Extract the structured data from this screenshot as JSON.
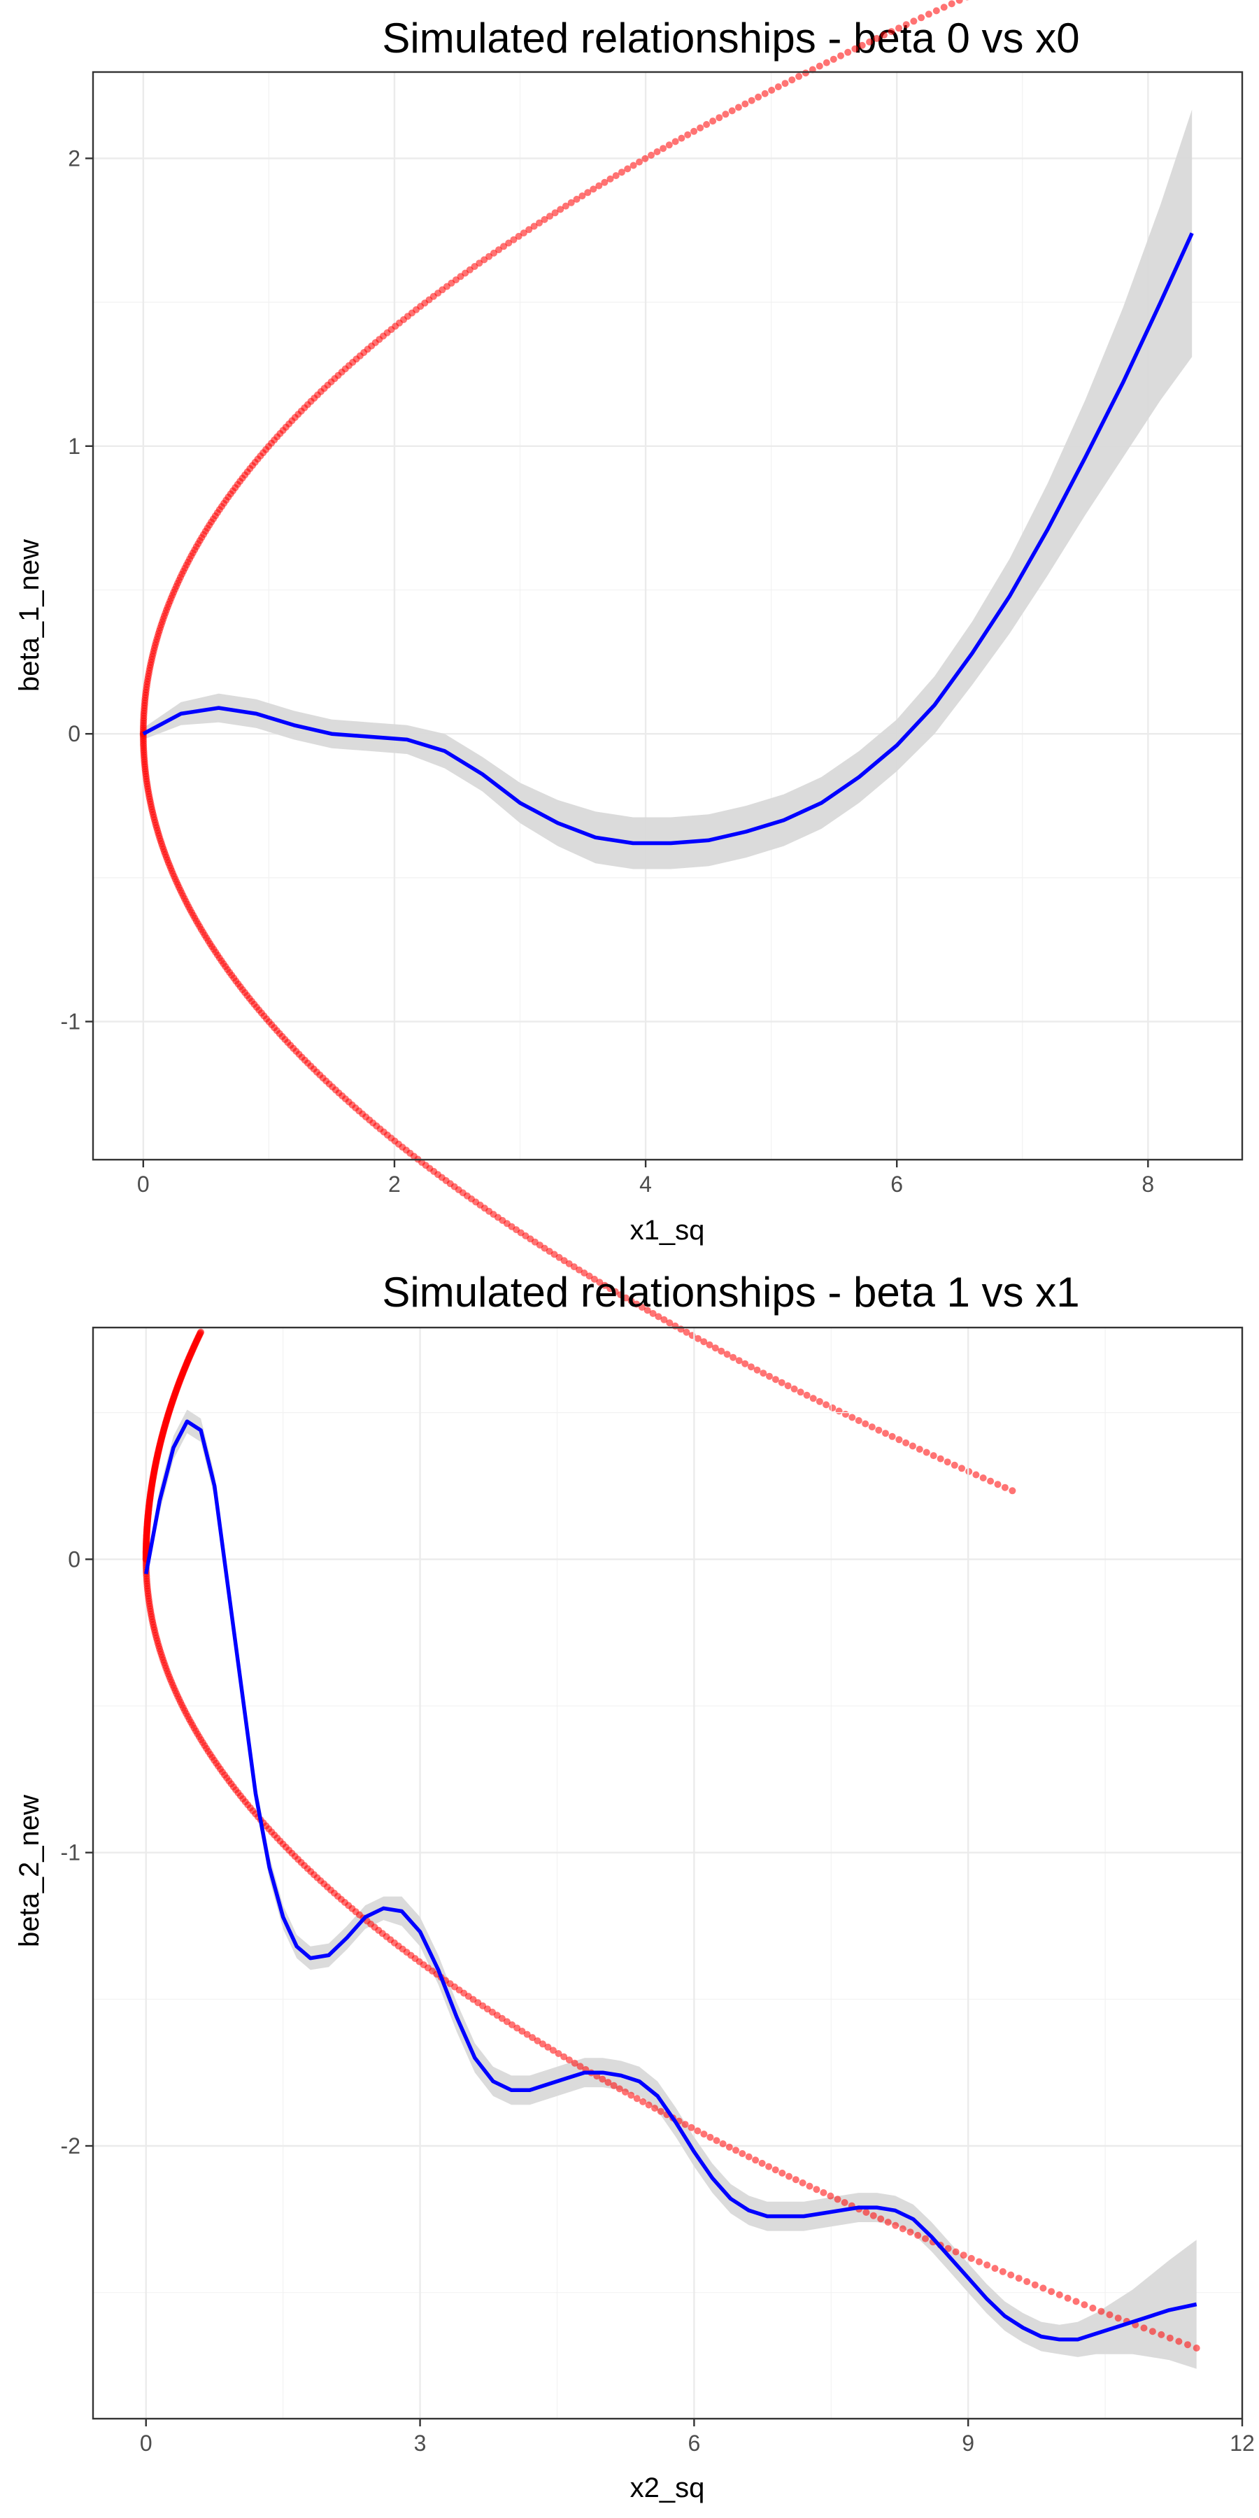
{
  "chart_data": [
    {
      "type": "scatter",
      "title": "Simulated relationships - beta 0 vs x0",
      "xlabel": "x1_sq",
      "ylabel": "beta_1_new",
      "xlim": [
        -0.4,
        8.75
      ],
      "ylim": [
        -1.48,
        2.3
      ],
      "xticks": [
        0,
        2,
        4,
        6,
        8
      ],
      "yticks": [
        -1,
        0,
        1,
        2
      ],
      "xtick_labels": [
        "0",
        "2",
        "4",
        "6",
        "8"
      ],
      "ytick_labels": [
        "-1",
        "0",
        "1",
        "2"
      ],
      "grid": true,
      "colors": {
        "points": "#ff0000",
        "smooth": "#0000ff",
        "ribbon": "#d9d9d9"
      },
      "series": [
        {
          "kind": "points",
          "generator": "sqrt",
          "upper_x_max": 8.35,
          "lower_x_max": 6.92,
          "sign": "both"
        },
        {
          "kind": "smooth",
          "x": [
            0,
            0.3,
            0.6,
            0.9,
            1.2,
            1.5,
            1.8,
            2.1,
            2.4,
            2.7,
            3.0,
            3.3,
            3.6,
            3.9,
            4.2,
            4.5,
            4.8,
            5.1,
            5.4,
            5.7,
            6.0,
            6.3,
            6.6,
            6.9,
            7.2,
            7.5,
            7.8,
            8.1,
            8.35
          ],
          "y": [
            0,
            0.07,
            0.09,
            0.07,
            0.03,
            0.0,
            -0.01,
            -0.02,
            -0.06,
            -0.14,
            -0.24,
            -0.31,
            -0.36,
            -0.38,
            -0.38,
            -0.37,
            -0.34,
            -0.3,
            -0.24,
            -0.15,
            -0.04,
            0.1,
            0.28,
            0.48,
            0.71,
            0.96,
            1.22,
            1.5,
            1.74
          ],
          "se": [
            0.02,
            0.04,
            0.05,
            0.05,
            0.05,
            0.05,
            0.05,
            0.05,
            0.06,
            0.06,
            0.07,
            0.08,
            0.09,
            0.09,
            0.09,
            0.09,
            0.09,
            0.09,
            0.09,
            0.09,
            0.09,
            0.1,
            0.11,
            0.13,
            0.16,
            0.2,
            0.26,
            0.34,
            0.43
          ]
        }
      ]
    },
    {
      "type": "scatter",
      "title": "Simulated relationships - beta 1 vs x1",
      "xlabel": "x2_sq",
      "ylabel": "beta_2_new",
      "xlim": [
        -0.58,
        12.0
      ],
      "ylim": [
        -2.93,
        0.79
      ],
      "xticks": [
        0,
        3,
        6,
        9,
        12
      ],
      "yticks": [
        -2,
        -1,
        0
      ],
      "xtick_labels": [
        "0",
        "3",
        "6",
        "9",
        "12"
      ],
      "ytick_labels": [
        "-2",
        "-1",
        "0"
      ],
      "grid": true,
      "colors": {
        "points": "#ff0000",
        "smooth": "#0000ff",
        "ribbon": "#d9d9d9"
      },
      "series": [
        {
          "kind": "points",
          "generator": "sqrt",
          "upper_x_max": 0.6,
          "lower_x_max": 11.5,
          "sign": "both",
          "lower_scale": 0.793
        },
        {
          "kind": "smooth",
          "x": [
            0,
            0.15,
            0.3,
            0.45,
            0.6,
            0.75,
            0.9,
            1.05,
            1.2,
            1.35,
            1.5,
            1.65,
            1.8,
            2.0,
            2.2,
            2.4,
            2.6,
            2.8,
            3.0,
            3.2,
            3.4,
            3.6,
            3.8,
            4.0,
            4.2,
            4.4,
            4.6,
            4.8,
            5.0,
            5.2,
            5.4,
            5.6,
            5.8,
            6.0,
            6.2,
            6.4,
            6.6,
            6.8,
            7.0,
            7.2,
            7.4,
            7.6,
            7.8,
            8.0,
            8.2,
            8.4,
            8.6,
            8.8,
            9.0,
            9.2,
            9.4,
            9.6,
            9.8,
            10.0,
            10.2,
            10.4,
            10.6,
            10.8,
            11.0,
            11.2,
            11.5
          ],
          "y": [
            -0.05,
            0.2,
            0.38,
            0.47,
            0.44,
            0.25,
            -0.1,
            -0.45,
            -0.8,
            -1.05,
            -1.22,
            -1.32,
            -1.36,
            -1.35,
            -1.29,
            -1.22,
            -1.19,
            -1.2,
            -1.27,
            -1.4,
            -1.56,
            -1.7,
            -1.78,
            -1.81,
            -1.81,
            -1.79,
            -1.77,
            -1.75,
            -1.75,
            -1.76,
            -1.78,
            -1.83,
            -1.92,
            -2.02,
            -2.11,
            -2.18,
            -2.22,
            -2.24,
            -2.24,
            -2.24,
            -2.23,
            -2.22,
            -2.21,
            -2.21,
            -2.22,
            -2.25,
            -2.31,
            -2.38,
            -2.45,
            -2.52,
            -2.58,
            -2.62,
            -2.65,
            -2.66,
            -2.66,
            -2.64,
            -2.62,
            -2.6,
            -2.58,
            -2.56,
            -2.54
          ],
          "se": [
            0.03,
            0.04,
            0.04,
            0.04,
            0.04,
            0.04,
            0.04,
            0.04,
            0.04,
            0.04,
            0.04,
            0.04,
            0.04,
            0.04,
            0.04,
            0.04,
            0.04,
            0.05,
            0.05,
            0.05,
            0.05,
            0.05,
            0.05,
            0.05,
            0.05,
            0.05,
            0.05,
            0.05,
            0.05,
            0.05,
            0.05,
            0.05,
            0.05,
            0.05,
            0.05,
            0.05,
            0.05,
            0.05,
            0.05,
            0.05,
            0.05,
            0.05,
            0.05,
            0.05,
            0.05,
            0.05,
            0.05,
            0.05,
            0.05,
            0.05,
            0.05,
            0.05,
            0.05,
            0.05,
            0.06,
            0.07,
            0.09,
            0.11,
            0.14,
            0.17,
            0.22
          ]
        }
      ]
    }
  ]
}
